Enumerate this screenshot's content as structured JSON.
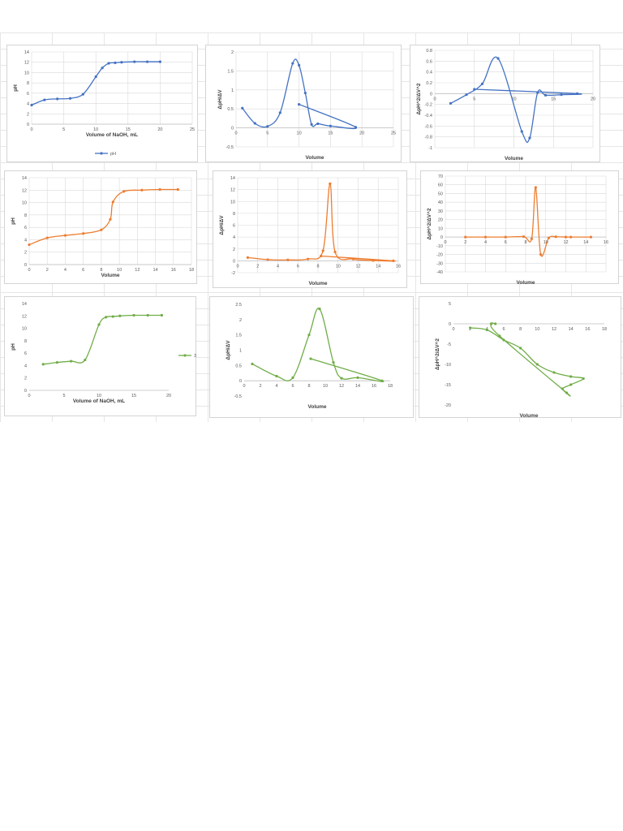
{
  "colors": {
    "blue": "#4472c4",
    "orange": "#ed7d31",
    "green": "#70ad47"
  },
  "chart_data": [
    {
      "type": "line",
      "color": "#4472c4",
      "xlim": [
        0,
        25
      ],
      "ylim": [
        0,
        14
      ],
      "xticks": [
        0,
        5,
        10,
        15,
        20,
        25
      ],
      "yticks": [
        0,
        2,
        4,
        6,
        8,
        10,
        12,
        14
      ],
      "xlabel": "Volume of NaOH, mL",
      "ylabel": "pH",
      "legend": "pH",
      "legend_position": "bottom",
      "grid": true,
      "series": [
        {
          "name": "pH",
          "x": [
            0,
            2,
            4,
            6,
            8,
            10,
            11,
            12,
            13,
            14,
            16,
            18,
            20
          ],
          "y": [
            3.7,
            4.7,
            4.9,
            5.0,
            5.8,
            9.2,
            10.9,
            11.8,
            11.9,
            12.0,
            12.1,
            12.1,
            12.1
          ]
        }
      ]
    },
    {
      "type": "line",
      "color": "#4472c4",
      "xlim": [
        0,
        25
      ],
      "ylim": [
        -0.5,
        2
      ],
      "xticks": [
        0,
        5,
        10,
        15,
        20,
        25
      ],
      "yticks": [
        -0.5,
        0,
        0.5,
        1,
        1.5,
        2
      ],
      "xlabel": "Volume",
      "ylabel": "ΔpH/ΔV",
      "grid": true,
      "series": [
        {
          "name": "",
          "x": [
            1,
            3,
            5,
            7,
            9,
            10,
            11,
            12,
            13,
            15,
            19,
            10
          ],
          "y": [
            0.52,
            0.12,
            0.04,
            0.4,
            1.7,
            1.65,
            0.92,
            0.09,
            0.11,
            0.05,
            0.02,
            0.62
          ]
        }
      ]
    },
    {
      "type": "line",
      "color": "#4472c4",
      "xlim": [
        0,
        20
      ],
      "ylim": [
        -1,
        0.8
      ],
      "xticks": [
        0,
        5,
        10,
        15,
        20
      ],
      "yticks": [
        -1,
        -0.8,
        -0.6,
        -0.4,
        -0.2,
        0,
        0.2,
        0.4,
        0.6,
        0.8
      ],
      "xlabel": "Volume",
      "ylabel": "ΔpH^2/ΔV^2",
      "grid": true,
      "series": [
        {
          "name": "",
          "x": [
            2,
            4,
            6,
            8,
            11,
            12,
            13,
            14,
            16,
            18,
            5
          ],
          "y": [
            -0.18,
            -0.02,
            0.18,
            0.65,
            -0.7,
            -0.82,
            0.02,
            -0.03,
            -0.02,
            0.0,
            0.08
          ]
        }
      ]
    },
    {
      "type": "line",
      "color": "#ed7d31",
      "xlim": [
        0,
        18
      ],
      "ylim": [
        0,
        14
      ],
      "xticks": [
        0,
        2,
        4,
        6,
        8,
        10,
        12,
        14,
        16,
        18
      ],
      "yticks": [
        0,
        2,
        4,
        6,
        8,
        10,
        12,
        14
      ],
      "xlabel": "Volume",
      "ylabel": "pH",
      "grid": true,
      "series": [
        {
          "name": "",
          "x": [
            0,
            2,
            4,
            6,
            8,
            9,
            9.3,
            10.5,
            12.5,
            14.5,
            16.5
          ],
          "y": [
            3.2,
            4.3,
            4.7,
            5.0,
            5.6,
            7.3,
            10.1,
            11.8,
            12.0,
            12.1,
            12.1
          ]
        }
      ]
    },
    {
      "type": "line",
      "color": "#ed7d31",
      "xlim": [
        0,
        16
      ],
      "ylim": [
        -2,
        14
      ],
      "xticks": [
        0,
        2,
        4,
        6,
        8,
        10,
        12,
        14,
        16
      ],
      "yticks": [
        -2,
        0,
        2,
        4,
        6,
        8,
        10,
        12,
        14
      ],
      "xlabel": "Volume",
      "ylabel": "ΔpH/ΔV",
      "grid": true,
      "series": [
        {
          "name": "",
          "x": [
            1,
            3,
            5,
            7,
            8.5,
            9.2,
            9.7,
            11.5,
            13.5,
            15.5,
            8.3
          ],
          "y": [
            0.55,
            0.2,
            0.15,
            0.3,
            1.7,
            13.0,
            1.5,
            0.3,
            0.05,
            0.0,
            0.8
          ]
        }
      ]
    },
    {
      "type": "line",
      "color": "#ed7d31",
      "xlim": [
        0,
        16
      ],
      "ylim": [
        -40,
        70
      ],
      "xticks": [
        0,
        2,
        4,
        6,
        8,
        10,
        12,
        14,
        16
      ],
      "yticks": [
        -40,
        -30,
        -20,
        -10,
        0,
        10,
        20,
        30,
        40,
        50,
        60,
        70
      ],
      "xlabel": "Volume",
      "ylabel": "ΔpH^2/ΔV^2",
      "grid": true,
      "series": [
        {
          "name": "",
          "x": [
            2,
            4,
            6,
            7.8,
            8.6,
            9.0,
            9.5,
            10.3,
            11,
            12,
            12.5,
            14.5
          ],
          "y": [
            0,
            0,
            0,
            0.5,
            -2,
            57,
            -20,
            -1,
            0.3,
            0,
            0,
            0
          ]
        }
      ]
    },
    {
      "type": "line",
      "color": "#70ad47",
      "xlim": [
        0,
        20
      ],
      "ylim": [
        0,
        14
      ],
      "xticks": [
        0,
        5,
        10,
        15,
        20
      ],
      "yticks": [
        0,
        2,
        4,
        6,
        8,
        10,
        12,
        14
      ],
      "xlabel": "Volume of NaOH, mL",
      "ylabel": "pH",
      "legend": "3",
      "legend_position": "right",
      "grid": false,
      "series": [
        {
          "name": "3",
          "x": [
            2,
            4,
            6,
            8,
            10,
            11,
            12,
            13,
            15,
            17,
            19
          ],
          "y": [
            4.2,
            4.5,
            4.7,
            4.9,
            10.6,
            11.8,
            11.9,
            12.0,
            12.1,
            12.1,
            12.1
          ]
        }
      ]
    },
    {
      "type": "line",
      "color": "#70ad47",
      "xlim": [
        0,
        18
      ],
      "ylim": [
        -0.5,
        2.5
      ],
      "xticks": [
        0,
        2,
        4,
        6,
        8,
        10,
        12,
        14,
        16,
        18
      ],
      "yticks": [
        -0.5,
        0,
        0.5,
        1,
        1.5,
        2,
        2.5
      ],
      "xlabel": "Volume",
      "ylabel": "ΔpH/ΔV",
      "grid": false,
      "series": [
        {
          "name": "",
          "x": [
            1,
            4,
            6,
            8,
            9.3,
            11,
            12,
            14,
            17,
            8.2
          ],
          "y": [
            0.55,
            0.15,
            0.1,
            1.5,
            2.35,
            0.6,
            0.08,
            0.1,
            0.0,
            0.72
          ]
        }
      ]
    },
    {
      "type": "line",
      "color": "#70ad47",
      "xlim": [
        0,
        18
      ],
      "ylim": [
        -20,
        5
      ],
      "xticks": [
        0,
        2,
        4,
        6,
        8,
        10,
        12,
        14,
        16,
        18
      ],
      "yticks": [
        -20,
        -15,
        -10,
        -5,
        0,
        5
      ],
      "xlabel": "Volume",
      "ylabel": "ΔpH^2/ΔV^2",
      "grid": false,
      "series": [
        {
          "name": "",
          "x": [
            2,
            4,
            6,
            8,
            10,
            12,
            14,
            15.5,
            14,
            13,
            13.5,
            5.5,
            4.5,
            5
          ],
          "y": [
            -1,
            -1.5,
            -4,
            -6,
            -10,
            -12,
            -13,
            -13.5,
            -15,
            -16,
            -17,
            -3,
            0,
            0
          ]
        }
      ]
    }
  ]
}
